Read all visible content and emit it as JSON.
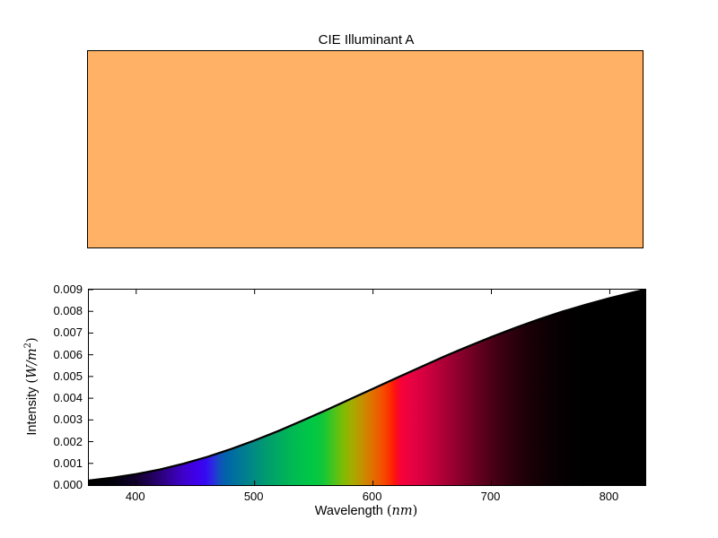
{
  "title": "CIE Illuminant A",
  "top_chart": {
    "title": "CIE Illuminant A",
    "swatch_color": "#ffb266",
    "border_color": "#000000"
  },
  "chart_data": [
    {
      "type": "area",
      "title": "CIE Illuminant A",
      "note": "top panel: solid swatch of the rendered illuminant color",
      "swatch_color": "#ffb266"
    },
    {
      "type": "area",
      "xlabel_prefix": "Wavelength (",
      "xlabel_math": "nm",
      "xlabel_suffix": ")",
      "ylabel_prefix": "Intensity (",
      "ylabel_math": "W/m",
      "ylabel_sup": "2",
      "ylabel_suffix": ")",
      "xlim": [
        360,
        830
      ],
      "ylim": [
        0,
        0.009
      ],
      "x_ticks": [
        400,
        500,
        600,
        700,
        800
      ],
      "x_tick_labels": [
        "400",
        "500",
        "600",
        "700",
        "800"
      ],
      "y_ticks": [
        0,
        0.001,
        0.002,
        0.003,
        0.004,
        0.005,
        0.006,
        0.007,
        0.008,
        0.009
      ],
      "y_tick_labels": [
        "0.000",
        "0.001",
        "0.002",
        "0.003",
        "0.004",
        "0.005",
        "0.006",
        "0.007",
        "0.008",
        "0.009"
      ],
      "grid": false,
      "legend": null,
      "line_color": "#000000",
      "line_width": 2.2,
      "x": [
        360,
        380,
        400,
        420,
        440,
        460,
        480,
        500,
        520,
        540,
        560,
        580,
        600,
        620,
        640,
        660,
        680,
        700,
        720,
        740,
        760,
        780,
        800,
        820,
        830
      ],
      "y": [
        0.00021,
        0.00034,
        0.00051,
        0.00072,
        0.00099,
        0.0013,
        0.00166,
        0.00206,
        0.00249,
        0.00296,
        0.00344,
        0.00394,
        0.00444,
        0.00494,
        0.00543,
        0.00592,
        0.00638,
        0.00682,
        0.00724,
        0.00763,
        0.00799,
        0.00831,
        0.00861,
        0.00888,
        0.009
      ],
      "fill": "visible-spectrum-gradient",
      "spectrum_stops": [
        {
          "wl": 360,
          "color": "#000000"
        },
        {
          "wl": 380,
          "color": "#02000a"
        },
        {
          "wl": 390,
          "color": "#08001c"
        },
        {
          "wl": 400,
          "color": "#120030"
        },
        {
          "wl": 410,
          "color": "#1e0050"
        },
        {
          "wl": 420,
          "color": "#2a0078"
        },
        {
          "wl": 430,
          "color": "#3600a4"
        },
        {
          "wl": 440,
          "color": "#3e00cc"
        },
        {
          "wl": 450,
          "color": "#3f00e8"
        },
        {
          "wl": 458,
          "color": "#3508f2"
        },
        {
          "wl": 464,
          "color": "#2b28e2"
        },
        {
          "wl": 470,
          "color": "#1150bc"
        },
        {
          "wl": 476,
          "color": "#0064a8"
        },
        {
          "wl": 484,
          "color": "#00729c"
        },
        {
          "wl": 492,
          "color": "#007f8e"
        },
        {
          "wl": 500,
          "color": "#008c80"
        },
        {
          "wl": 510,
          "color": "#009c6e"
        },
        {
          "wl": 520,
          "color": "#00aa60"
        },
        {
          "wl": 530,
          "color": "#00b754"
        },
        {
          "wl": 540,
          "color": "#00c14c"
        },
        {
          "wl": 550,
          "color": "#00c843"
        },
        {
          "wl": 558,
          "color": "#14c636"
        },
        {
          "wl": 566,
          "color": "#46c31e"
        },
        {
          "wl": 574,
          "color": "#7cbc04"
        },
        {
          "wl": 582,
          "color": "#a4ac00"
        },
        {
          "wl": 590,
          "color": "#c39200"
        },
        {
          "wl": 598,
          "color": "#de7500"
        },
        {
          "wl": 606,
          "color": "#f25600"
        },
        {
          "wl": 613,
          "color": "#fd3500"
        },
        {
          "wl": 618,
          "color": "#ff1410"
        },
        {
          "wl": 623,
          "color": "#f8023a"
        },
        {
          "wl": 633,
          "color": "#e70242"
        },
        {
          "wl": 645,
          "color": "#d00040"
        },
        {
          "wl": 658,
          "color": "#b00038"
        },
        {
          "wl": 670,
          "color": "#92002e"
        },
        {
          "wl": 682,
          "color": "#740026"
        },
        {
          "wl": 694,
          "color": "#58001c"
        },
        {
          "wl": 706,
          "color": "#400014"
        },
        {
          "wl": 718,
          "color": "#2c000e"
        },
        {
          "wl": 730,
          "color": "#1c0008"
        },
        {
          "wl": 745,
          "color": "#0e0004"
        },
        {
          "wl": 760,
          "color": "#050002"
        },
        {
          "wl": 775,
          "color": "#010000"
        },
        {
          "wl": 830,
          "color": "#000000"
        }
      ],
      "tick_length": 5,
      "axis_color": "#000000"
    }
  ]
}
